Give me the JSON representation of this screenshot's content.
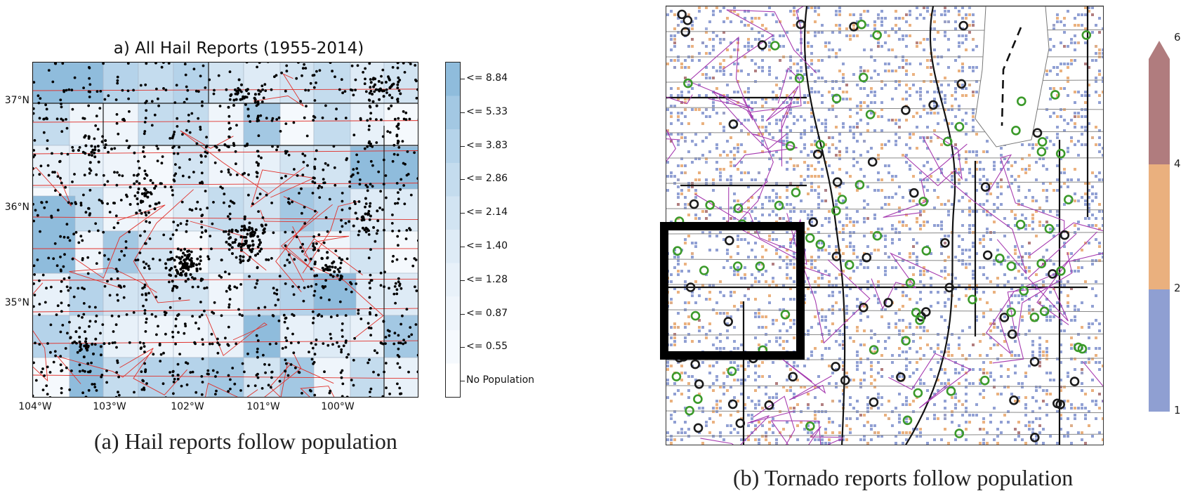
{
  "panel_a": {
    "title": "a) All Hail Reports (1955-2014)",
    "lat_labels": [
      "37°N",
      "36°N",
      "35°N"
    ],
    "lon_labels": [
      "104°W",
      "103°W",
      "102°W",
      "101°W",
      "100°W"
    ],
    "colorbar": {
      "labels": [
        "<= 8.84",
        "<= 5.33",
        "<= 3.83",
        "<= 2.86",
        "<= 2.14",
        "<= 1.40",
        "<= 1.28",
        "<= 0.87",
        "<= 0.55",
        "No Population"
      ],
      "colors": [
        "#8fbcdc",
        "#a3c8e3",
        "#b5d3ea",
        "#c4dcee",
        "#d2e4f2",
        "#deebf6",
        "#e8f1f9",
        "#eff5fb",
        "#f5f9fd",
        "#ffffff"
      ]
    },
    "caption": "(a) Hail reports follow population"
  },
  "panel_b": {
    "colorbar": {
      "labels": [
        "6",
        "4",
        "2",
        "1"
      ],
      "colors": [
        "#b07c7e",
        "#eab07e",
        "#8f9fd2"
      ]
    },
    "caption": "(b) Tornado reports follow population"
  }
}
